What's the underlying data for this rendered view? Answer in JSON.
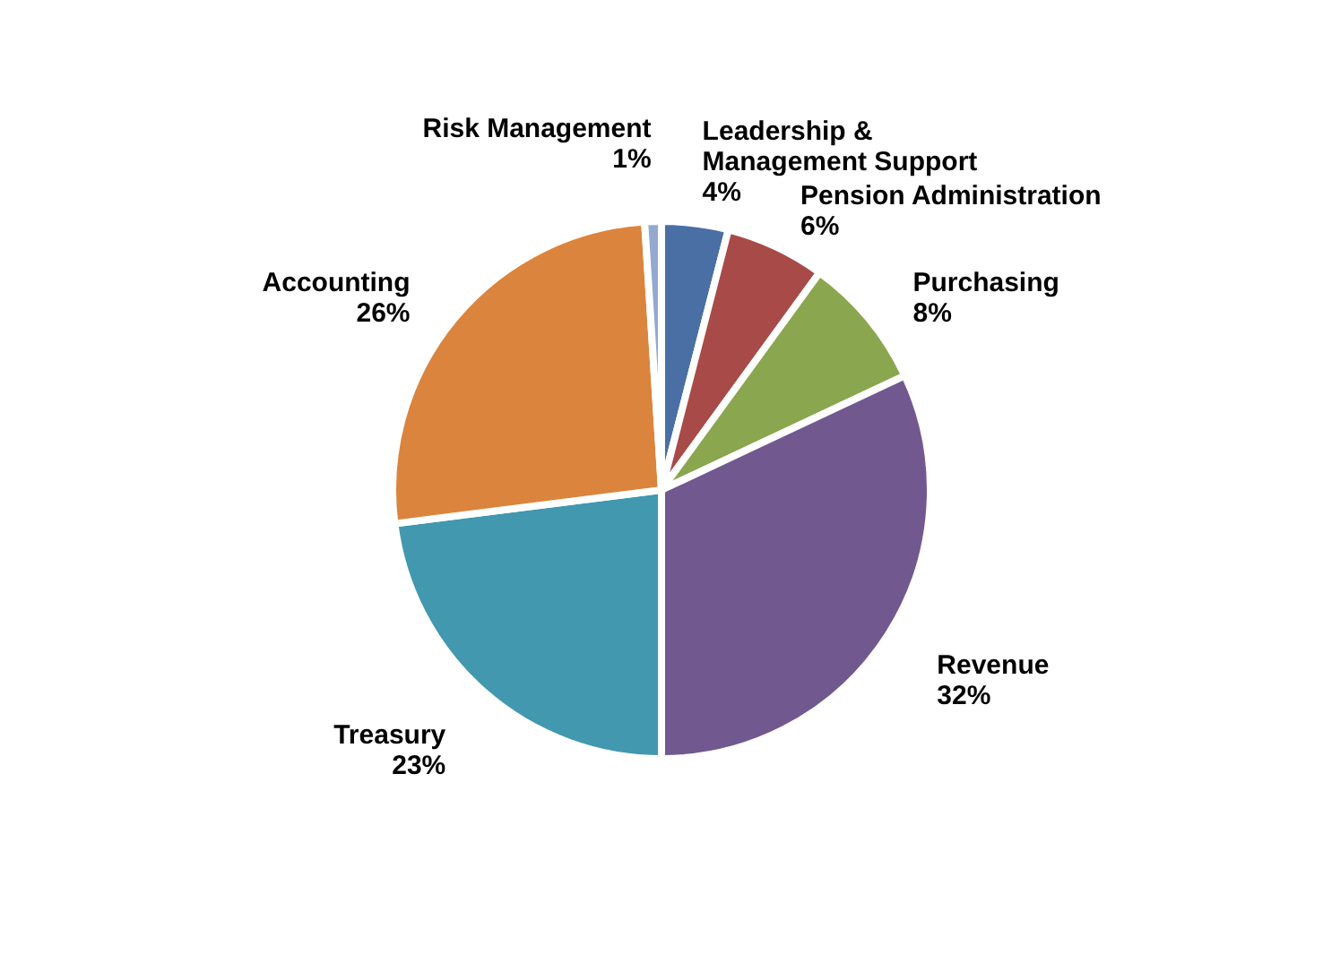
{
  "chart_data": {
    "type": "pie",
    "categories": [
      "Leadership & Management Support",
      "Pension Administration",
      "Purchasing",
      "Revenue",
      "Treasury",
      "Accounting",
      "Risk Management"
    ],
    "values": [
      4,
      6,
      8,
      32,
      23,
      26,
      1
    ],
    "value_labels": [
      "4%",
      "6%",
      "8%",
      "32%",
      "23%",
      "26%",
      "1%"
    ],
    "colors": [
      "#4a6fa5",
      "#a84a48",
      "#8aa64e",
      "#71588f",
      "#4198af",
      "#db843d",
      "#93a9cf"
    ],
    "legend": false
  }
}
